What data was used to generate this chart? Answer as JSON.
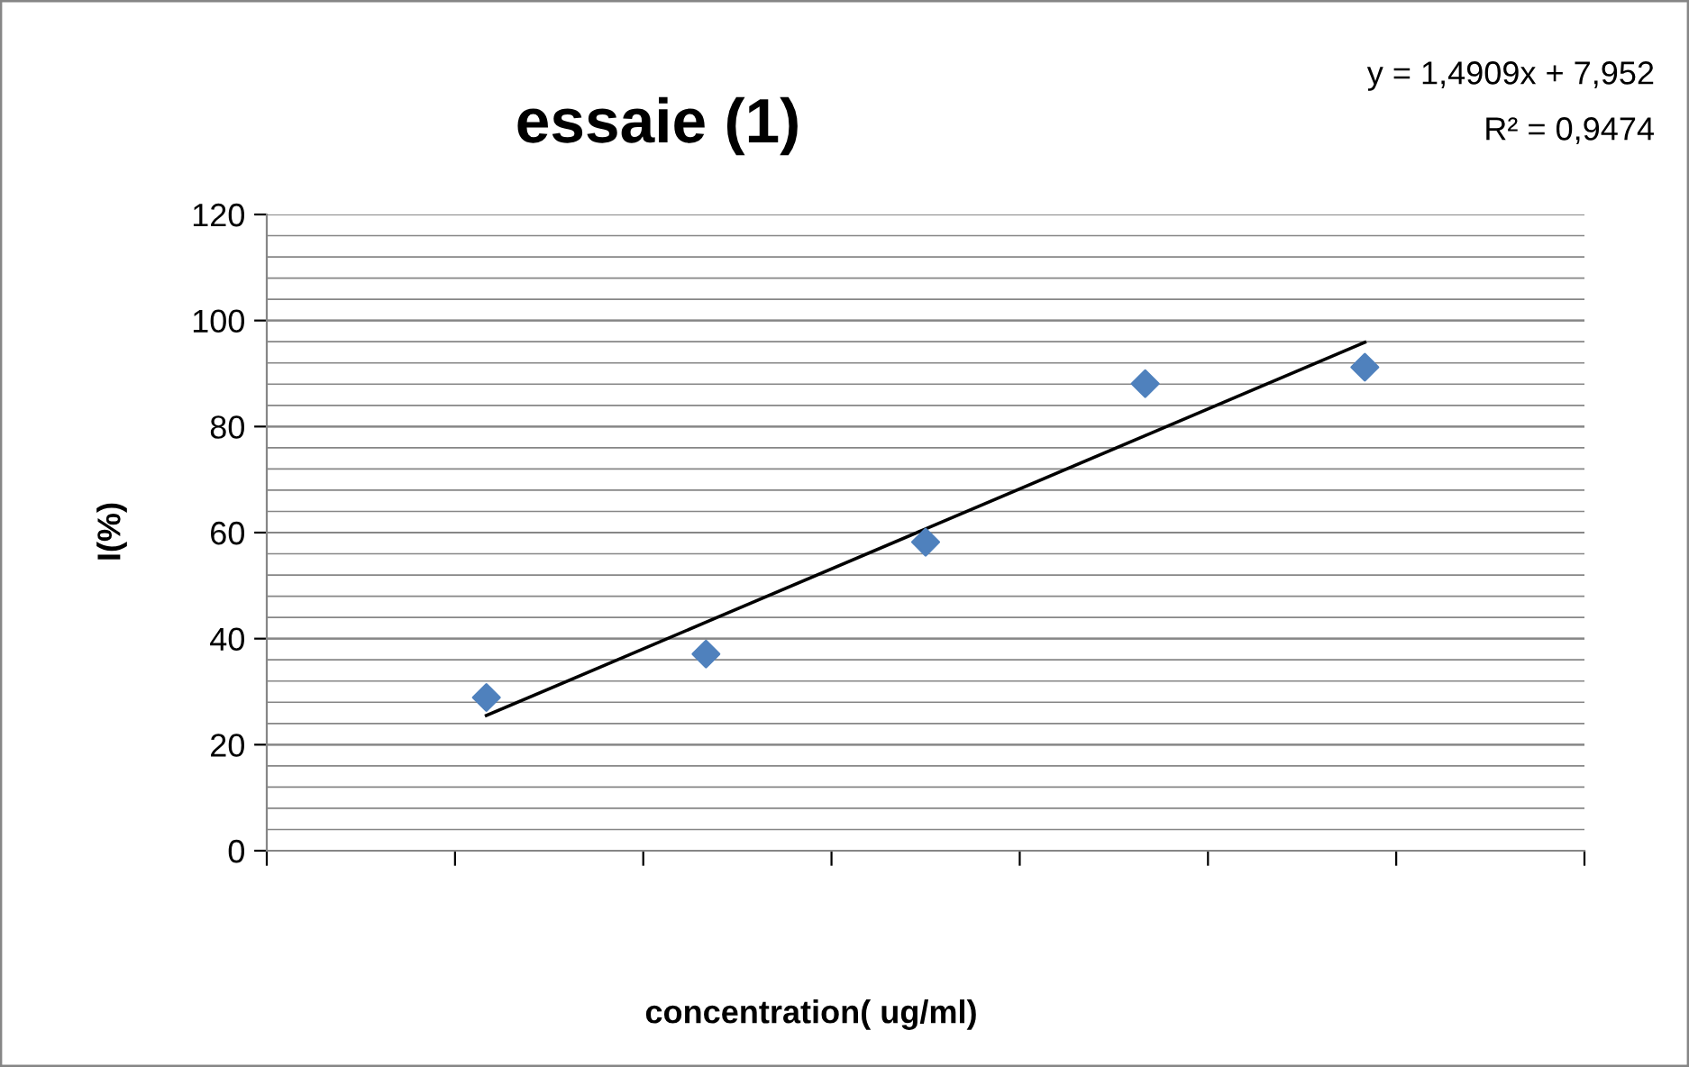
{
  "chart_data": {
    "type": "scatter",
    "title": "essaie (1)",
    "xlabel": "concentration( ug/ml)",
    "ylabel": "I(%)",
    "categories": [
      null,
      null,
      null,
      null,
      null
    ],
    "series": [
      {
        "color": "#4f81bd",
        "marker": "diamond",
        "values": [
          28.9,
          37.1,
          58.2,
          88.1,
          91.2
        ]
      },
      {
        "type": "line",
        "color": "#000000",
        "line_style": "solid",
        "values": [
          25.5,
          43.1,
          60.7,
          78.3,
          95.9
        ]
      }
    ],
    "ylim": [
      0,
      120
    ],
    "yticks": [
      0,
      20,
      40,
      60,
      80,
      100,
      120
    ],
    "grid": "y",
    "legend": false,
    "annotations": [
      "y = 1,4909x + 7,952",
      "R² = 0,9474"
    ]
  }
}
